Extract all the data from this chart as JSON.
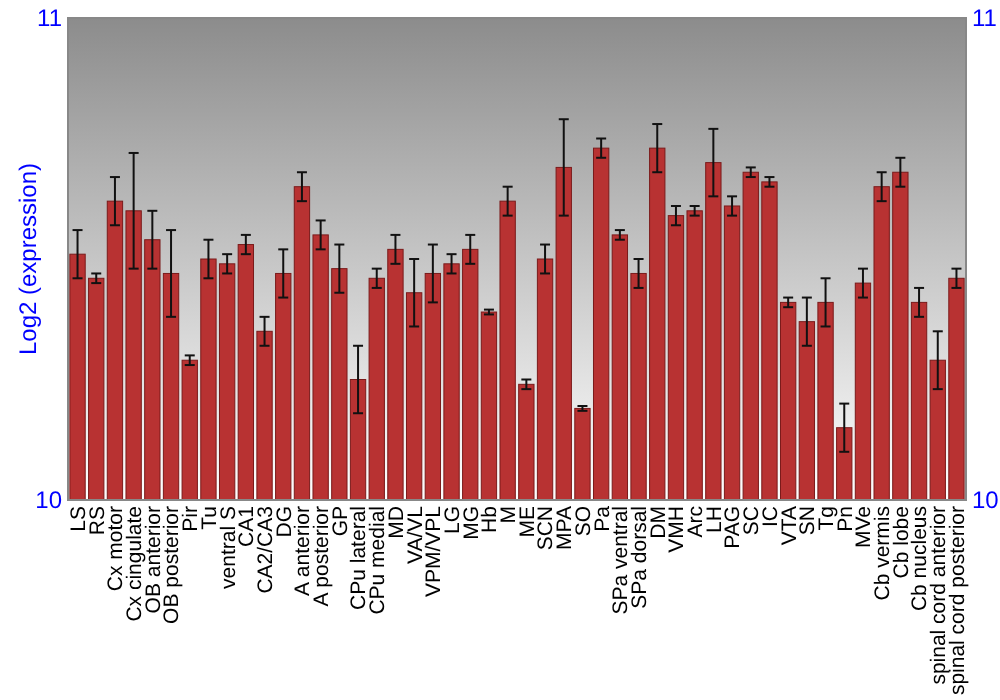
{
  "chart_data": {
    "type": "bar",
    "ylabel": "Log2 (expression)",
    "categories": [
      "LS",
      "RS",
      "Cx motor",
      "Cx cingulate",
      "OB anterior",
      "OB posterior",
      "Pir",
      "Tu",
      "ventral S",
      "CA1",
      "CA2/CA3",
      "DG",
      "A anterior",
      "A posterior",
      "GP",
      "CPu lateral",
      "CPu medial",
      "MD",
      "VA/VL",
      "VPM/VPL",
      "LG",
      "MG",
      "Hb",
      "M",
      "ME",
      "SCN",
      "MPA",
      "SO",
      "Pa",
      "SPa ventral",
      "SPa dorsal",
      "DM",
      "VMH",
      "Arc",
      "LH",
      "PAG",
      "SC",
      "IC",
      "VTA",
      "SN",
      "Tg",
      "Pn",
      "MVe",
      "Cb vermis",
      "Cb lobe",
      "Cb nucleus",
      "spinal cord anterior",
      "spinal cord posterior"
    ],
    "values": [
      10.51,
      10.46,
      10.62,
      10.6,
      10.54,
      10.47,
      10.29,
      10.5,
      10.49,
      10.53,
      10.35,
      10.47,
      10.65,
      10.55,
      10.48,
      10.25,
      10.46,
      10.52,
      10.43,
      10.47,
      10.49,
      10.52,
      10.39,
      10.62,
      10.24,
      10.5,
      10.69,
      10.19,
      10.73,
      10.55,
      10.47,
      10.73,
      10.59,
      10.6,
      10.7,
      10.61,
      10.68,
      10.66,
      10.41,
      10.37,
      10.41,
      10.15,
      10.45,
      10.65,
      10.68,
      10.41,
      10.29,
      10.46
    ],
    "errors": [
      0.05,
      0.01,
      0.05,
      0.12,
      0.06,
      0.09,
      0.01,
      0.04,
      0.02,
      0.02,
      0.03,
      0.05,
      0.03,
      0.03,
      0.05,
      0.07,
      0.02,
      0.03,
      0.07,
      0.06,
      0.02,
      0.03,
      0.005,
      0.03,
      0.01,
      0.03,
      0.1,
      0.005,
      0.02,
      0.01,
      0.03,
      0.05,
      0.02,
      0.01,
      0.07,
      0.02,
      0.01,
      0.01,
      0.01,
      0.05,
      0.05,
      0.05,
      0.03,
      0.03,
      0.03,
      0.03,
      0.06,
      0.02
    ],
    "color": "#b83232",
    "ylim": [
      10,
      11
    ],
    "yticks": [
      10,
      11
    ],
    "y2lim": [
      10,
      11
    ],
    "y2ticks": [
      10,
      11
    ]
  }
}
